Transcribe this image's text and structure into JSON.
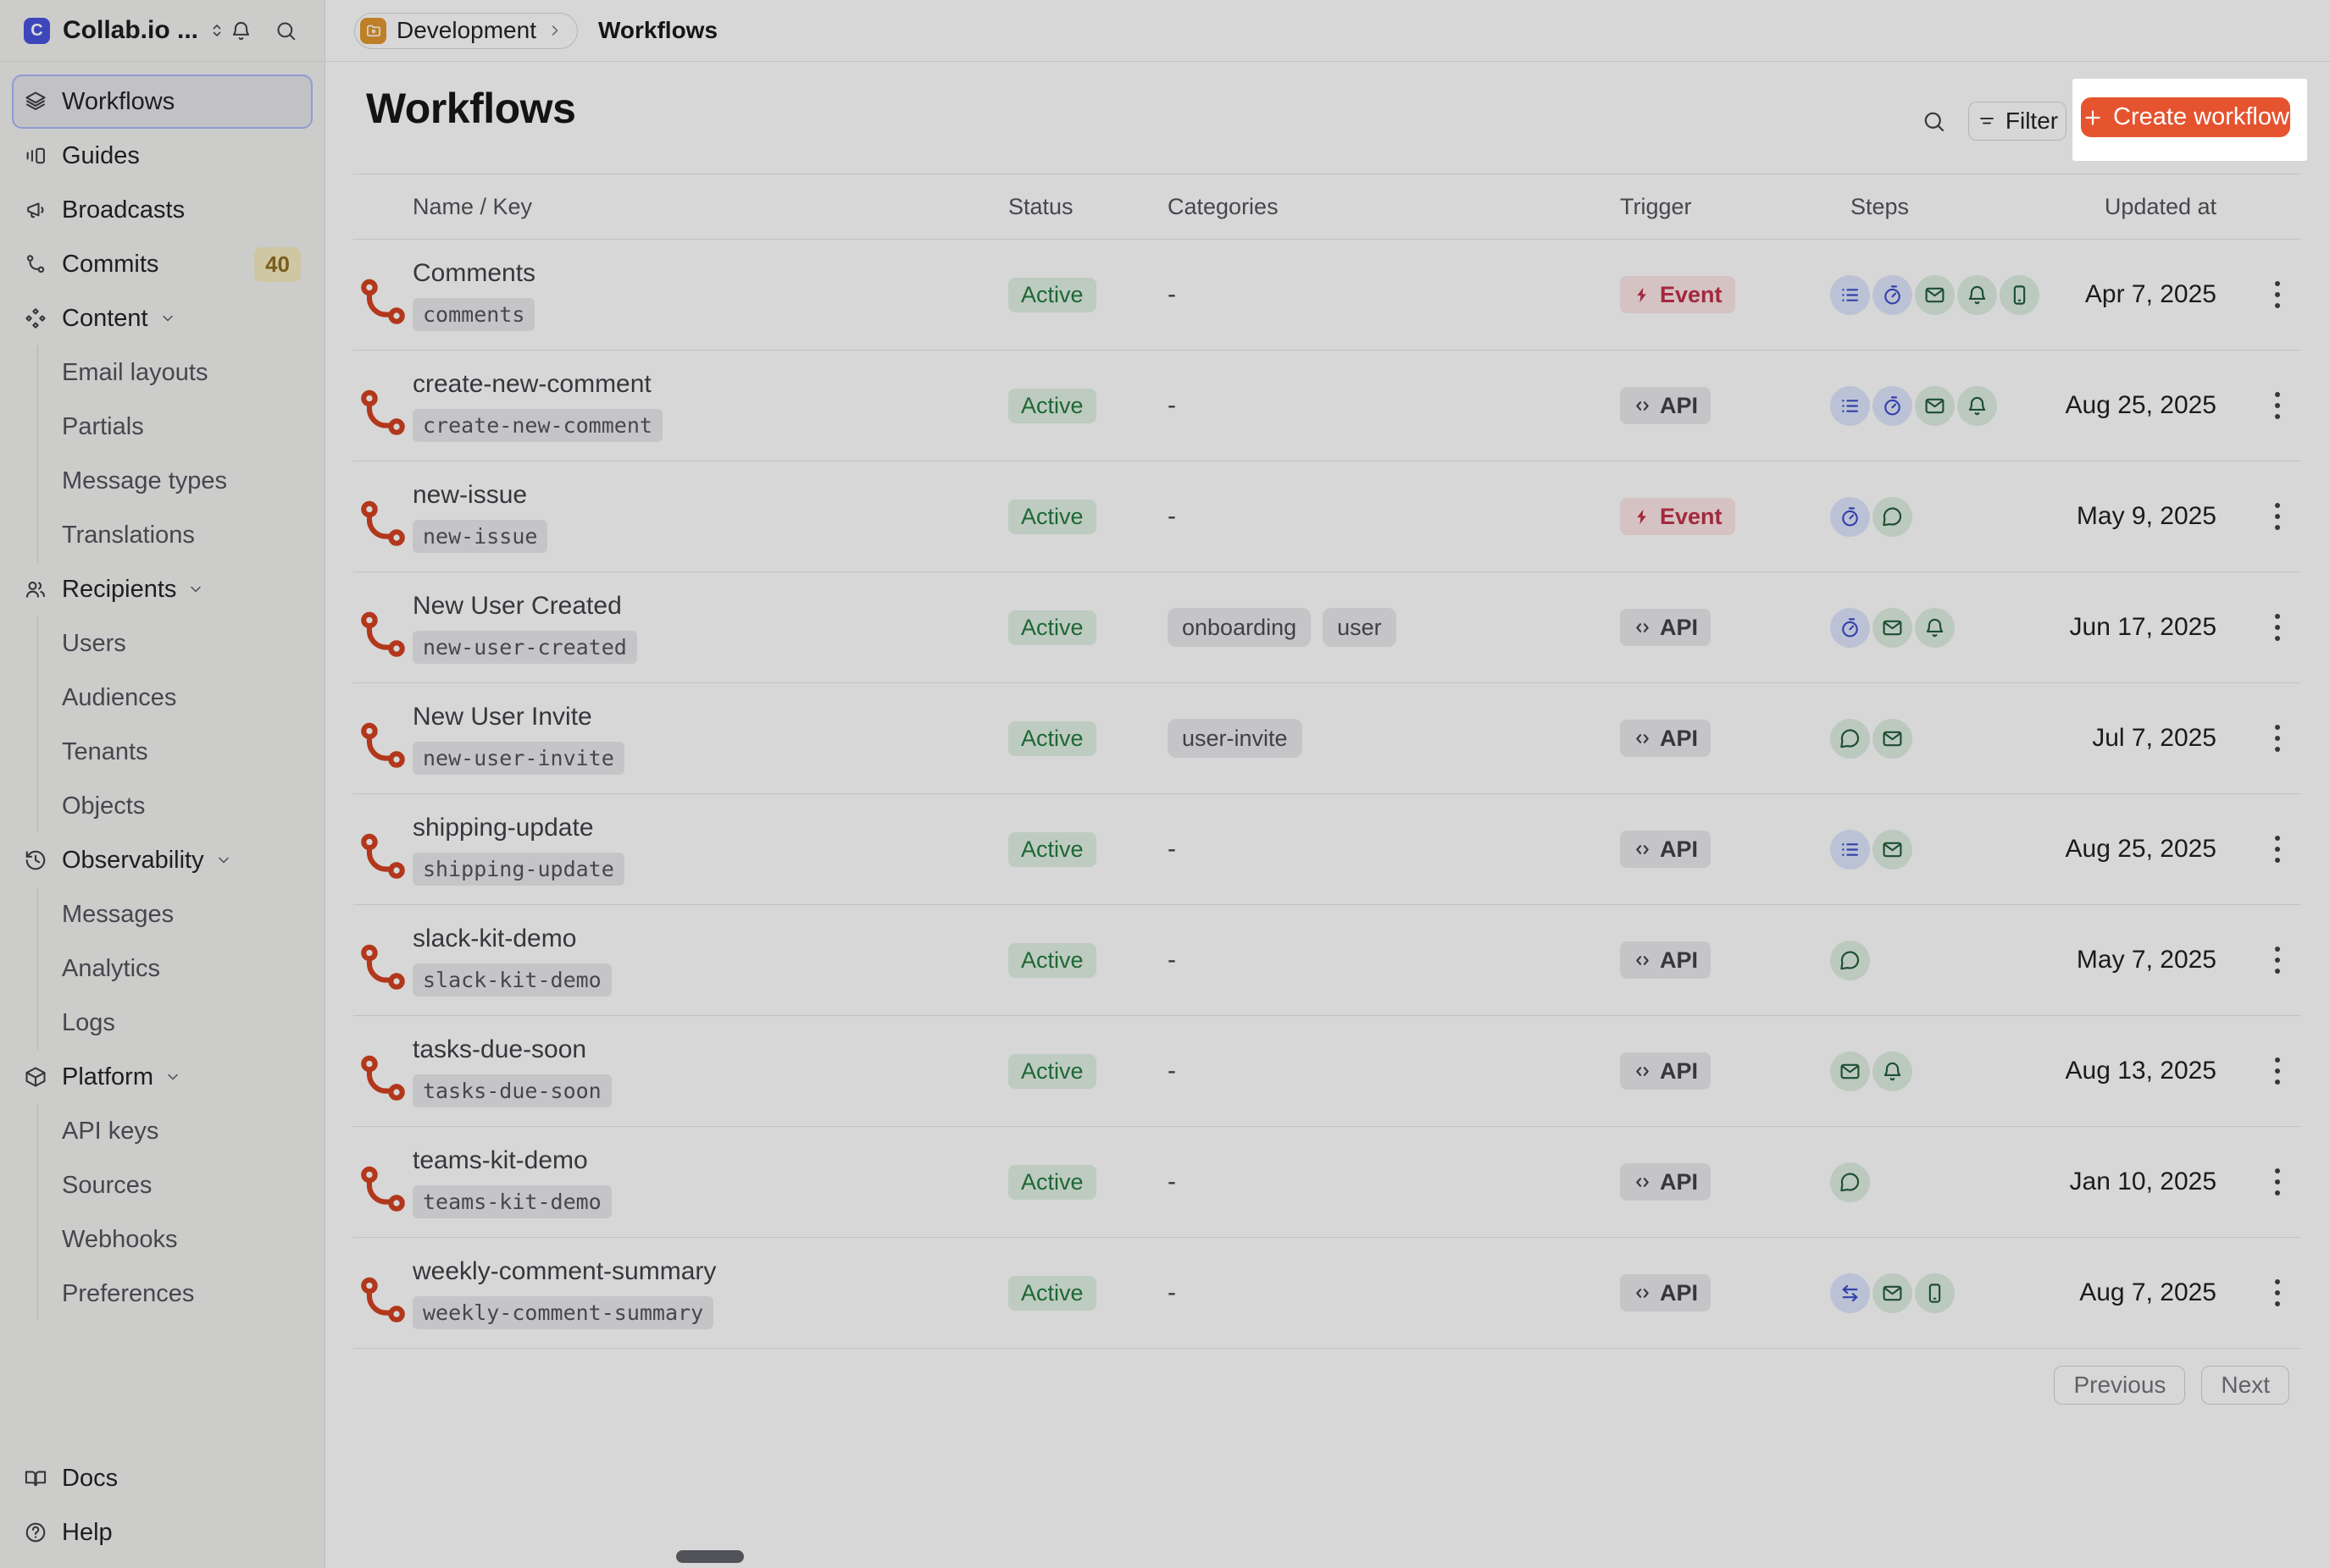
{
  "app": {
    "name": "Collab.io ...",
    "logo_letter": "C"
  },
  "colors": {
    "accent": "#E5532F",
    "status_green_bg": "#DFEEE2",
    "status_green_text": "#21793C",
    "event_bg": "#F9E3E3",
    "event_text": "#BE3049",
    "neutral_badge_bg": "#E7E7EA",
    "step_blue_bg": "#DCE3F9",
    "step_blue_icon": "#3A4CC6",
    "step_green_bg": "#DCEBDF",
    "step_green_icon": "#205B3A",
    "workflow_icon": "#D0401F",
    "environment_badge": "#DE942F",
    "selected_ring": "#A9B6F5",
    "commits_badge_bg": "#F3E8BE",
    "commits_badge_text": "#8F6B1F"
  },
  "sidebar": {
    "items": [
      {
        "label": "Workflows",
        "icon": "layers",
        "selected": true
      },
      {
        "label": "Guides",
        "icon": "guides"
      },
      {
        "label": "Broadcasts",
        "icon": "megaphone"
      },
      {
        "label": "Commits",
        "icon": "branch",
        "badge": "40"
      },
      {
        "label": "Content",
        "icon": "shapes",
        "expandable": true,
        "children": [
          "Email layouts",
          "Partials",
          "Message types",
          "Translations"
        ]
      },
      {
        "label": "Recipients",
        "icon": "users",
        "expandable": true,
        "children": [
          "Users",
          "Audiences",
          "Tenants",
          "Objects"
        ]
      },
      {
        "label": "Observability",
        "icon": "history",
        "expandable": true,
        "children": [
          "Messages",
          "Analytics",
          "Logs"
        ]
      },
      {
        "label": "Platform",
        "icon": "box",
        "expandable": true,
        "children": [
          "API keys",
          "Sources",
          "Webhooks",
          "Preferences"
        ]
      }
    ],
    "footer": [
      {
        "label": "Docs",
        "icon": "book"
      },
      {
        "label": "Help",
        "icon": "help"
      }
    ]
  },
  "breadcrumb": {
    "environment": "Development",
    "page": "Workflows"
  },
  "header": {
    "title": "Workflows",
    "filter_label": "Filter",
    "create_label": "Create workflow"
  },
  "table": {
    "columns": [
      "Name / Key",
      "Status",
      "Categories",
      "Trigger",
      "Steps",
      "Updated at"
    ],
    "empty_categories": "-",
    "rows": [
      {
        "name": "Comments",
        "key": "comments",
        "status": "Active",
        "categories": [],
        "trigger": "Event",
        "steps": [
          "batch",
          "delay",
          "email",
          "bell",
          "phone"
        ],
        "updated": "Apr 7, 2025"
      },
      {
        "name": "create-new-comment",
        "key": "create-new-comment",
        "status": "Active",
        "categories": [],
        "trigger": "API",
        "steps": [
          "batch",
          "delay",
          "email",
          "bell"
        ],
        "updated": "Aug 25, 2025"
      },
      {
        "name": "new-issue",
        "key": "new-issue",
        "status": "Active",
        "categories": [],
        "trigger": "Event",
        "steps": [
          "delay",
          "chat"
        ],
        "updated": "May 9, 2025"
      },
      {
        "name": "New User Created",
        "key": "new-user-created",
        "status": "Active",
        "categories": [
          "onboarding",
          "user"
        ],
        "trigger": "API",
        "steps": [
          "delay",
          "email",
          "bell"
        ],
        "updated": "Jun 17, 2025"
      },
      {
        "name": "New User Invite",
        "key": "new-user-invite",
        "status": "Active",
        "categories": [
          "user-invite"
        ],
        "trigger": "API",
        "steps": [
          "chat",
          "email"
        ],
        "updated": "Jul 7, 2025"
      },
      {
        "name": "shipping-update",
        "key": "shipping-update",
        "status": "Active",
        "categories": [],
        "trigger": "API",
        "steps": [
          "batch",
          "email"
        ],
        "updated": "Aug 25, 2025"
      },
      {
        "name": "slack-kit-demo",
        "key": "slack-kit-demo",
        "status": "Active",
        "categories": [],
        "trigger": "API",
        "steps": [
          "chat"
        ],
        "updated": "May 7, 2025"
      },
      {
        "name": "tasks-due-soon",
        "key": "tasks-due-soon",
        "status": "Active",
        "categories": [],
        "trigger": "API",
        "steps": [
          "email",
          "bell"
        ],
        "updated": "Aug 13, 2025"
      },
      {
        "name": "teams-kit-demo",
        "key": "teams-kit-demo",
        "status": "Active",
        "categories": [],
        "trigger": "API",
        "steps": [
          "chat"
        ],
        "updated": "Jan 10, 2025"
      },
      {
        "name": "weekly-comment-summary",
        "key": "weekly-comment-summary",
        "status": "Active",
        "categories": [],
        "trigger": "API",
        "steps": [
          "fetch",
          "email",
          "phone"
        ],
        "updated": "Aug 7, 2025"
      }
    ]
  },
  "pagination": {
    "previous": "Previous",
    "next": "Next"
  }
}
